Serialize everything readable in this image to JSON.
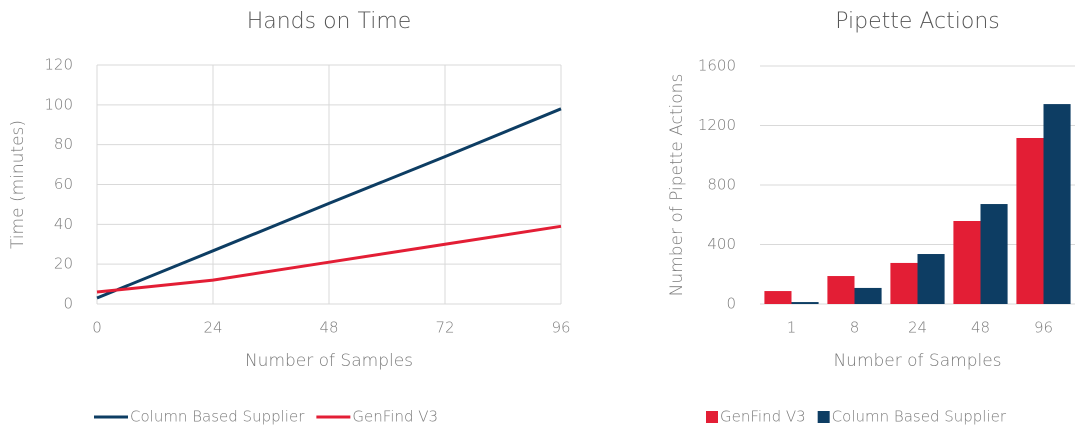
{
  "chart_data": [
    {
      "type": "line",
      "title": "Hands on Time",
      "x_label": "Number of Samples",
      "y_label": "Time (minutes)",
      "x": [
        0,
        24,
        48,
        72,
        96
      ],
      "series": [
        {
          "name": "Column Based Supplier",
          "color": "#0d3d63",
          "values": [
            3,
            26.7,
            50.5,
            74,
            98
          ]
        },
        {
          "name": "GenFind V3",
          "color": "#e31e35",
          "values": [
            6,
            12,
            21,
            30,
            39
          ]
        }
      ],
      "xlim": [
        0,
        96
      ],
      "xticks": [
        0,
        24,
        48,
        72,
        96
      ],
      "ylim": [
        0,
        120
      ],
      "yticks": [
        0,
        20,
        40,
        60,
        80,
        100,
        120
      ],
      "grid": "both",
      "legend": "bottom"
    },
    {
      "type": "bar",
      "title": "Pipette Actions",
      "x_label": "Number of Samples",
      "y_label": "Number of Pipette Actions",
      "categories": [
        "1",
        "8",
        "24",
        "48",
        "96"
      ],
      "series": [
        {
          "name": "GenFind V3",
          "color": "#e31e35",
          "values": [
            87,
            188,
            276,
            558,
            1116
          ]
        },
        {
          "name": "Column Based Supplier",
          "color": "#0d3d63",
          "values": [
            13,
            108,
            336,
            672,
            1344
          ]
        }
      ],
      "ylim": [
        0,
        1600
      ],
      "yticks": [
        0,
        400,
        800,
        1200,
        1600
      ],
      "grid": "y",
      "legend": "bottom"
    }
  ]
}
